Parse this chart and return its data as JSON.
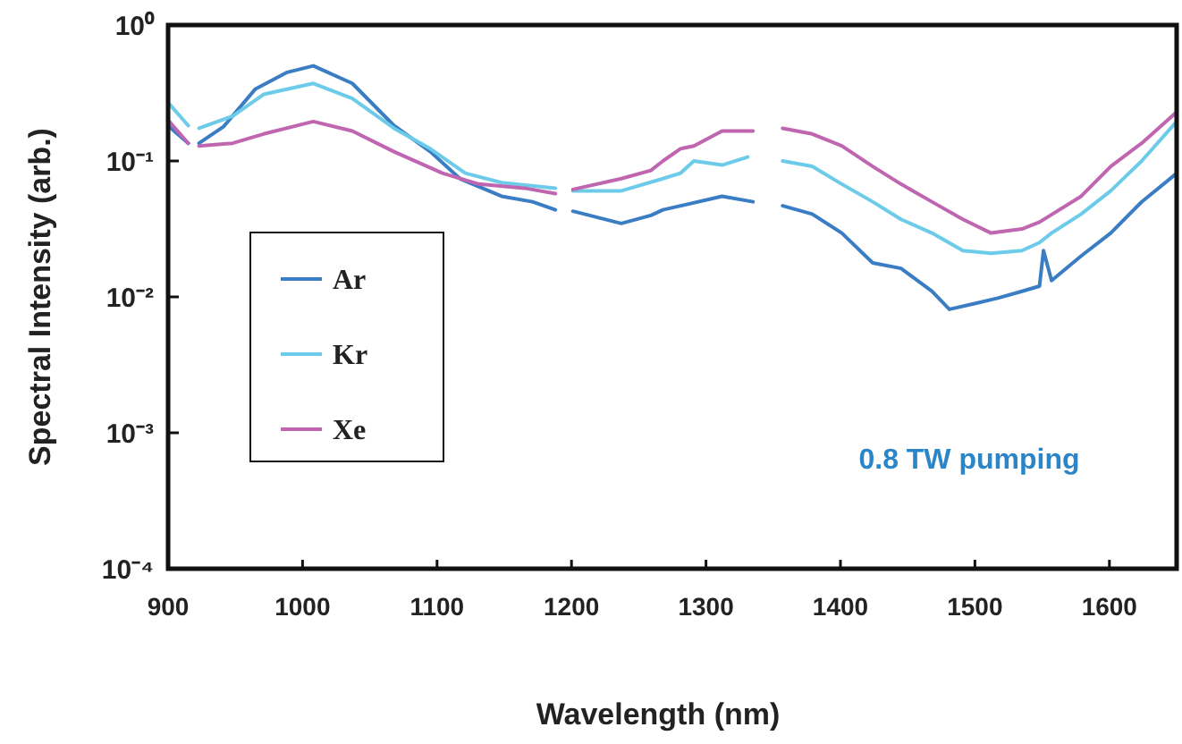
{
  "chart_data": {
    "type": "line",
    "xlabel": "Wavelength (nm)",
    "ylabel": "Spectral Intensity (arb.)",
    "xlim": [
      900,
      1650
    ],
    "xticks": [
      900,
      1000,
      1100,
      1200,
      1300,
      1400,
      1500,
      1600
    ],
    "ylim": [
      0.0001,
      1
    ],
    "yticks": [
      {
        "value": 1,
        "label": "10⁰"
      },
      {
        "value": 0.1,
        "label": "10⁻¹"
      },
      {
        "value": 0.01,
        "label": "10⁻²"
      },
      {
        "value": 0.001,
        "label": "10⁻³"
      },
      {
        "value": 0.0001,
        "label": "10⁻⁴"
      }
    ],
    "log": "y",
    "grid": false,
    "legend": "left",
    "marker": "none",
    "line_style": "solid",
    "annotations": [
      "0.8 TW pumping"
    ],
    "series": [
      {
        "name": "Ar",
        "color": "#3a7dc4",
        "x": [
          900,
          915,
          918,
          923,
          941,
          965,
          988,
          1008,
          1037,
          1068,
          1095,
          1117,
          1148,
          1171,
          1188,
          1194,
          1201,
          1237,
          1259,
          1268,
          1312,
          1335,
          1340,
          1357,
          1379,
          1401,
          1424,
          1445,
          1468,
          1481,
          1499,
          1517,
          1535,
          1548,
          1551,
          1557,
          1579,
          1601,
          1624,
          1650
        ],
        "values": [
          0.182,
          0.135,
          null,
          0.135,
          0.178,
          0.339,
          0.447,
          0.501,
          0.372,
          0.182,
          0.117,
          0.0741,
          0.055,
          0.0501,
          0.0437,
          null,
          0.0427,
          0.0347,
          0.0398,
          0.0437,
          0.055,
          0.0501,
          null,
          0.0468,
          0.0407,
          0.0295,
          0.0178,
          0.0162,
          0.011,
          0.0081,
          0.0089,
          0.0098,
          0.011,
          0.012,
          0.0219,
          0.0132,
          0.02,
          0.0295,
          0.05,
          0.081
        ]
      },
      {
        "name": "Kr",
        "color": "#6ccbe8",
        "x": [
          900,
          915,
          918,
          923,
          948,
          971,
          1008,
          1037,
          1068,
          1095,
          1121,
          1148,
          1188,
          1194,
          1201,
          1237,
          1268,
          1281,
          1291,
          1312,
          1331,
          1340,
          1357,
          1379,
          1401,
          1424,
          1445,
          1468,
          1491,
          1512,
          1535,
          1548,
          1557,
          1579,
          1601,
          1624,
          1650
        ],
        "values": [
          0.269,
          0.182,
          null,
          0.174,
          0.214,
          0.309,
          0.372,
          0.288,
          0.174,
          0.123,
          0.0813,
          0.0692,
          0.0631,
          null,
          0.0603,
          0.0603,
          0.0741,
          0.0813,
          0.1,
          0.0933,
          0.107,
          null,
          0.1,
          0.0912,
          0.0676,
          0.0501,
          0.0372,
          0.0295,
          0.0219,
          0.0209,
          0.0219,
          0.0251,
          0.0295,
          0.0407,
          0.0603,
          0.1,
          0.195
        ]
      },
      {
        "name": "Xe",
        "color": "#c066b0",
        "x": [
          900,
          915,
          918,
          923,
          948,
          971,
          1008,
          1037,
          1068,
          1104,
          1131,
          1165,
          1188,
          1194,
          1201,
          1237,
          1259,
          1268,
          1281,
          1291,
          1312,
          1335,
          1340,
          1357,
          1379,
          1401,
          1424,
          1445,
          1468,
          1491,
          1512,
          1535,
          1548,
          1579,
          1601,
          1624,
          1650
        ],
        "values": [
          0.2,
          0.135,
          null,
          0.129,
          0.135,
          0.158,
          0.195,
          0.166,
          0.117,
          0.0813,
          0.0676,
          0.0631,
          0.0575,
          null,
          0.0617,
          0.0741,
          0.0851,
          0.1,
          0.123,
          0.129,
          0.166,
          0.166,
          null,
          0.174,
          0.158,
          0.129,
          0.0912,
          0.0676,
          0.0501,
          0.0372,
          0.0295,
          0.0316,
          0.0355,
          0.055,
          0.0912,
          0.135,
          0.229
        ]
      }
    ]
  }
}
